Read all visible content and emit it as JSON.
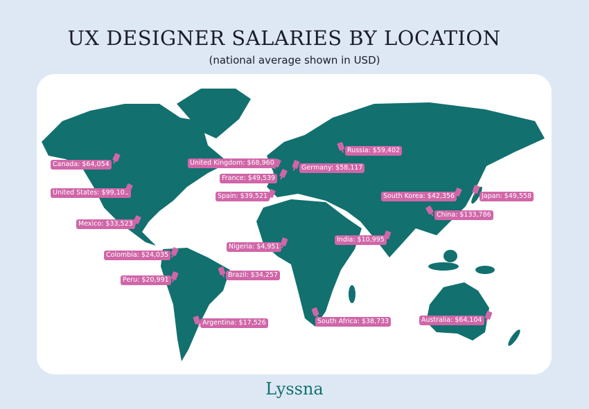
{
  "title": "UX DESIGNER SALARIES BY LOCATION",
  "subtitle": "(national average shown in USD)",
  "logo": "Lyssna",
  "colors": {
    "background": "#dde8f4",
    "land": "#12706f",
    "marker": "#d066a8"
  },
  "markers": [
    {
      "label": "Canada: $64,054"
    },
    {
      "label": "United States: $99,101"
    },
    {
      "label": "Mexico: $33,523"
    },
    {
      "label": "Colombia: $24,035"
    },
    {
      "label": "Peru: $20,991"
    },
    {
      "label": "Brazil: $34,257"
    },
    {
      "label": "Argentina: $17,526"
    },
    {
      "label": "United Kingdom: $68,960"
    },
    {
      "label": "France: $49,539"
    },
    {
      "label": "Spain: $39,521"
    },
    {
      "label": "Germany: $58,117"
    },
    {
      "label": "Russia: $59,402"
    },
    {
      "label": "Nigeria: $4,951"
    },
    {
      "label": "South Africa: $38,733"
    },
    {
      "label": "India: $10,995"
    },
    {
      "label": "South Korea: $42,356"
    },
    {
      "label": "Japan: $49,558"
    },
    {
      "label": "China: $133,786"
    },
    {
      "label": "Australia: $64,104"
    }
  ]
}
